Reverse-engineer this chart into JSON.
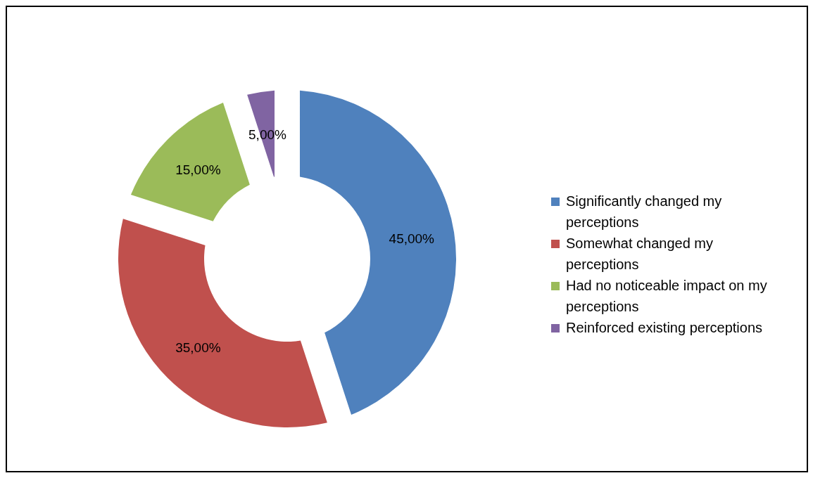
{
  "chart_data": {
    "type": "donut",
    "categories": [
      "Significantly changed my perceptions",
      "Somewhat changed my perceptions",
      "Had no noticeable impact on my perceptions",
      "Reinforced existing perceptions"
    ],
    "values": [
      45,
      35,
      15,
      5
    ],
    "colors": [
      "#4f81bd",
      "#c0504d",
      "#9bbb59",
      "#8064a2"
    ],
    "value_labels": [
      "45,00%",
      "35,00%",
      "15,00%",
      "5,00%"
    ],
    "legend": "right"
  }
}
